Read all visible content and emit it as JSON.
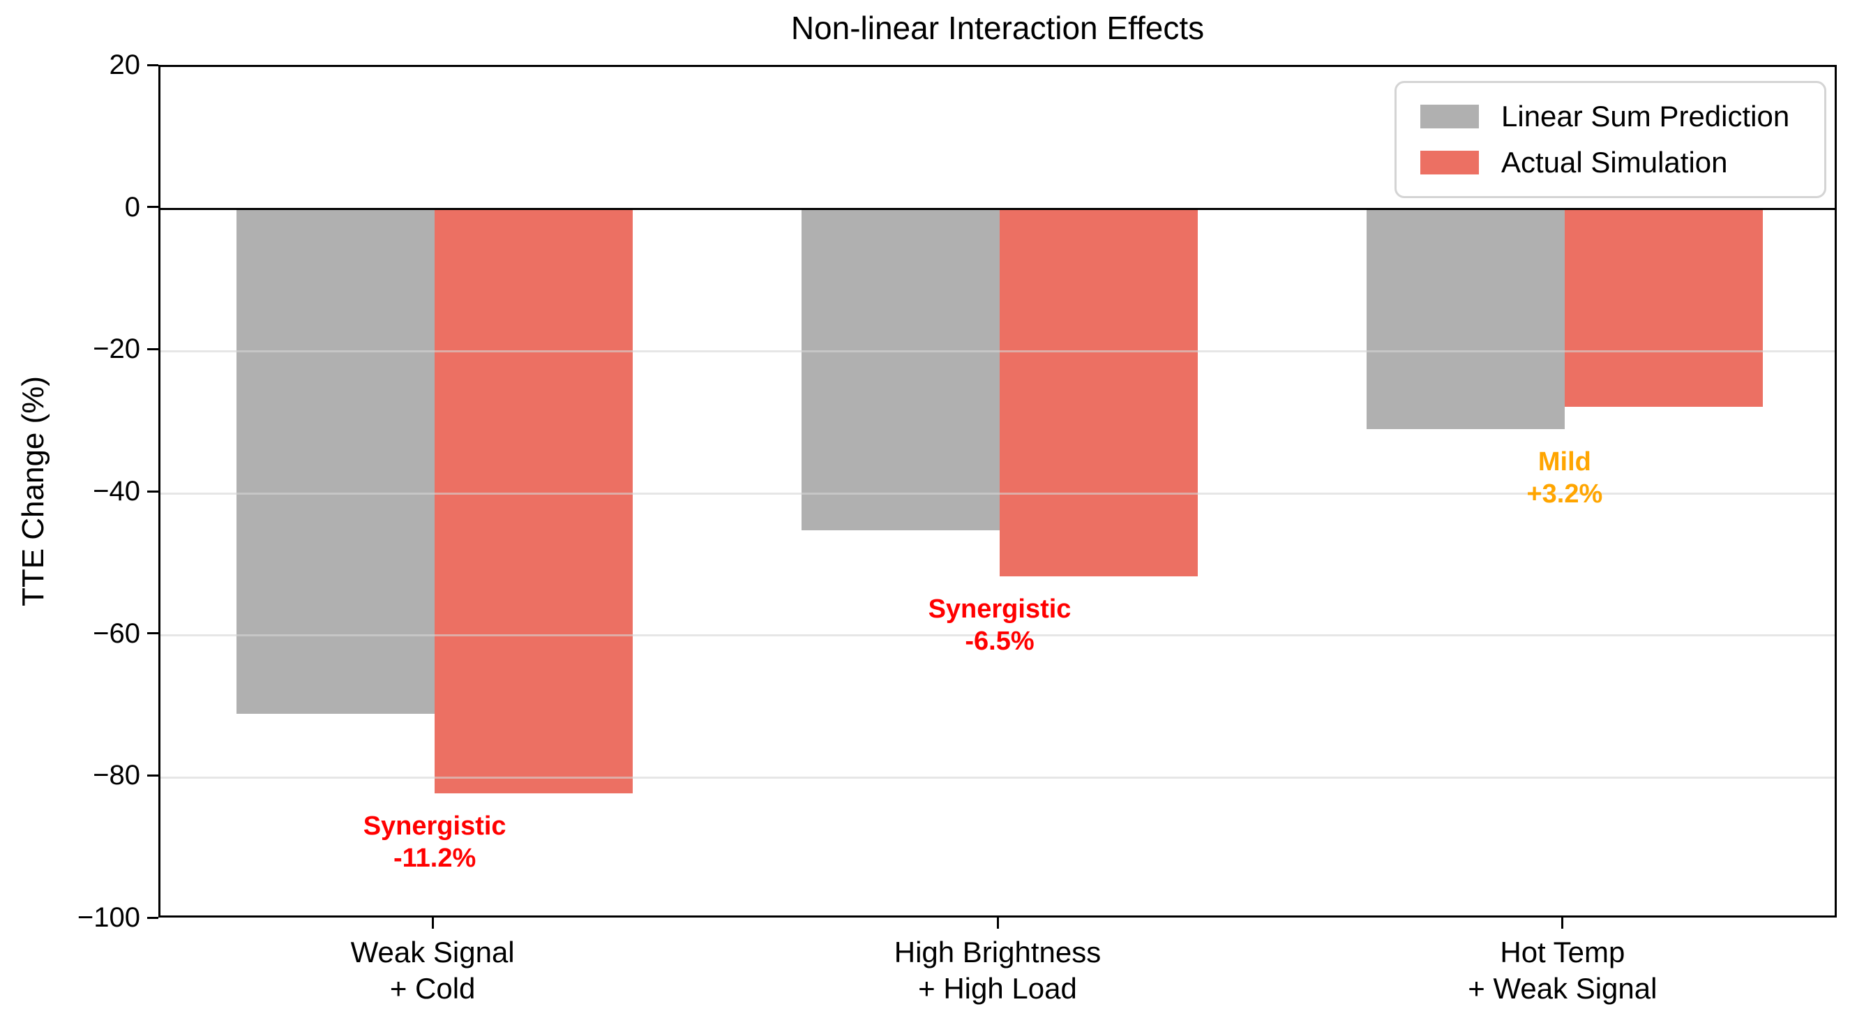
{
  "chart_data": {
    "type": "bar",
    "title": "Non-linear Interaction Effects",
    "xlabel": "",
    "ylabel": "TTE Change (%)",
    "ylim": [
      -100,
      20
    ],
    "grid": "horizontal",
    "legend_position": "upper right",
    "background_color": "#ffffff",
    "yticks": {
      "values": [
        20,
        0,
        -20,
        -40,
        -60,
        -80,
        -100
      ],
      "labels": [
        "20",
        "0",
        "−20",
        "−40",
        "−60",
        "−80",
        "−100"
      ]
    },
    "categories": [
      "Weak Signal\n+ Cold",
      "High Brightness\n+ High Load",
      "Hot Temp\n+ Weak Signal"
    ],
    "series": [
      {
        "name": "Linear Sum Prediction",
        "color": "#b0b0b0",
        "values": [
          -71.0,
          -45.2,
          -31.0
        ]
      },
      {
        "name": "Actual Simulation",
        "color": "#ec7063",
        "values": [
          -82.2,
          -51.7,
          -27.8
        ]
      }
    ],
    "annotations": [
      {
        "category": "Weak Signal\n+ Cold",
        "label": "Synergistic",
        "value": "-11.2%",
        "color": "#ff0000"
      },
      {
        "category": "High Brightness\n+ High Load",
        "label": "Synergistic",
        "value": "-6.5%",
        "color": "#ff0000"
      },
      {
        "category": "Hot Temp\n+ Weak Signal",
        "label": "Mild",
        "value": "+3.2%",
        "color": "#ffa500"
      }
    ],
    "colors": {
      "zero_line": "#000000",
      "grid": "#d6d6d6",
      "spine": "#000000"
    }
  }
}
